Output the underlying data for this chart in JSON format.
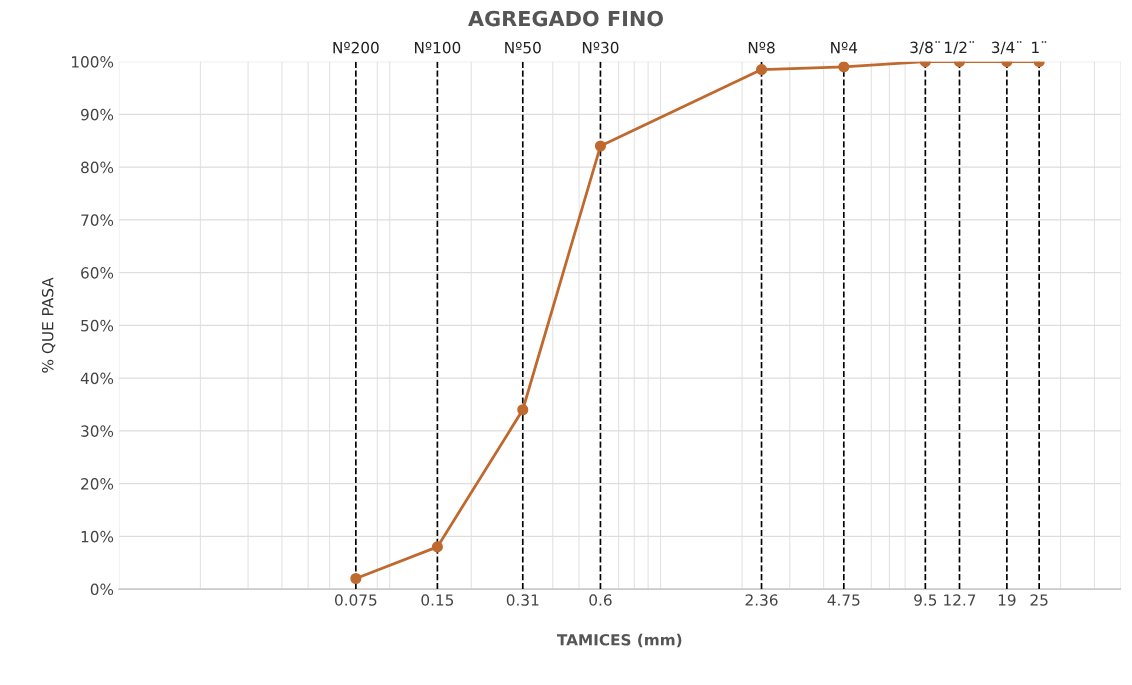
{
  "chart_data": {
    "type": "line",
    "title": "AGREGADO FINO",
    "xlabel": "TAMICES (mm)",
    "ylabel": "% QUE PASA",
    "x": [
      0.075,
      0.15,
      0.31,
      0.6,
      2.36,
      4.75,
      9.5,
      12.7,
      19,
      25
    ],
    "series": [
      {
        "color": "#c0692e",
        "values": [
          2,
          8,
          34,
          84,
          98.5,
          99,
          100,
          100,
          100,
          100
        ]
      }
    ],
    "log": "x",
    "xlim": [
      0.01,
      50
    ],
    "xticks": [
      0.075,
      0.15,
      0.31,
      0.6,
      2.36,
      4.75,
      9.5,
      12.7,
      19,
      25
    ],
    "ylim": [
      0,
      100
    ],
    "yticks": [
      {
        "value": 0,
        "label": "0%"
      },
      {
        "value": 10,
        "label": "10%"
      },
      {
        "value": 20,
        "label": "20%"
      },
      {
        "value": 30,
        "label": "30%"
      },
      {
        "value": 40,
        "label": "40%"
      },
      {
        "value": 50,
        "label": "50%"
      },
      {
        "value": 60,
        "label": "60%"
      },
      {
        "value": 70,
        "label": "70%"
      },
      {
        "value": 80,
        "label": "80%"
      },
      {
        "value": 90,
        "label": "90%"
      },
      {
        "value": 100,
        "label": "100%"
      }
    ],
    "grid": true,
    "marker": "circle",
    "line_style": "solid",
    "ref_lines": [
      {
        "axis": "x",
        "value": 0.075,
        "label": "Nº200",
        "color": "#000000",
        "line_style": "dashed"
      },
      {
        "axis": "x",
        "value": 0.15,
        "label": "Nº100",
        "color": "#000000",
        "line_style": "dashed"
      },
      {
        "axis": "x",
        "value": 0.31,
        "label": "Nº50",
        "color": "#000000",
        "line_style": "dashed"
      },
      {
        "axis": "x",
        "value": 0.6,
        "label": "Nº30",
        "color": "#000000",
        "line_style": "dashed"
      },
      {
        "axis": "x",
        "value": 2.36,
        "label": "Nº8",
        "color": "#000000",
        "line_style": "dashed"
      },
      {
        "axis": "x",
        "value": 4.75,
        "label": "Nº4",
        "color": "#000000",
        "line_style": "dashed"
      },
      {
        "axis": "x",
        "value": 9.5,
        "color": "#000000",
        "line_style": "dashed"
      },
      {
        "axis": "x",
        "value": 12.7,
        "color": "#000000",
        "line_style": "dashed"
      },
      {
        "axis": "x",
        "value": 19,
        "color": "#000000",
        "line_style": "dashed"
      },
      {
        "axis": "x",
        "value": 25,
        "color": "#000000",
        "line_style": "dashed"
      }
    ],
    "annotations": [
      {
        "text": "3/8¨",
        "x": 9.5,
        "y": 100
      },
      {
        "text": "1/2¨",
        "x": 12.7,
        "y": 100
      },
      {
        "text": "3/4¨",
        "x": 19,
        "y": 100
      },
      {
        "text": "1¨",
        "x": 25,
        "y": 100
      }
    ]
  }
}
